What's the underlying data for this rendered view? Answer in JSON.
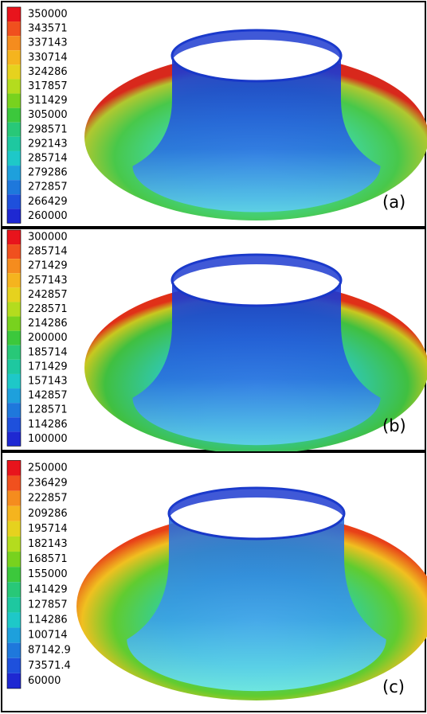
{
  "panels": [
    {
      "label": "(a)",
      "legend": [
        "350000",
        "343571",
        "337143",
        "330714",
        "324286",
        "317857",
        "311429",
        "305000",
        "298571",
        "292143",
        "285714",
        "279286",
        "272857",
        "266429",
        "260000"
      ]
    },
    {
      "label": "(b)",
      "legend": [
        "300000",
        "285714",
        "271429",
        "257143",
        "242857",
        "228571",
        "214286",
        "200000",
        "185714",
        "171429",
        "157143",
        "142857",
        "128571",
        "114286",
        "100000"
      ]
    },
    {
      "label": "(c)",
      "legend": [
        "250000",
        "236429",
        "222857",
        "209286",
        "195714",
        "182143",
        "168571",
        "155000",
        "141429",
        "127857",
        "114286",
        "100714",
        "87142.9",
        "73571.4",
        "60000"
      ]
    }
  ]
}
